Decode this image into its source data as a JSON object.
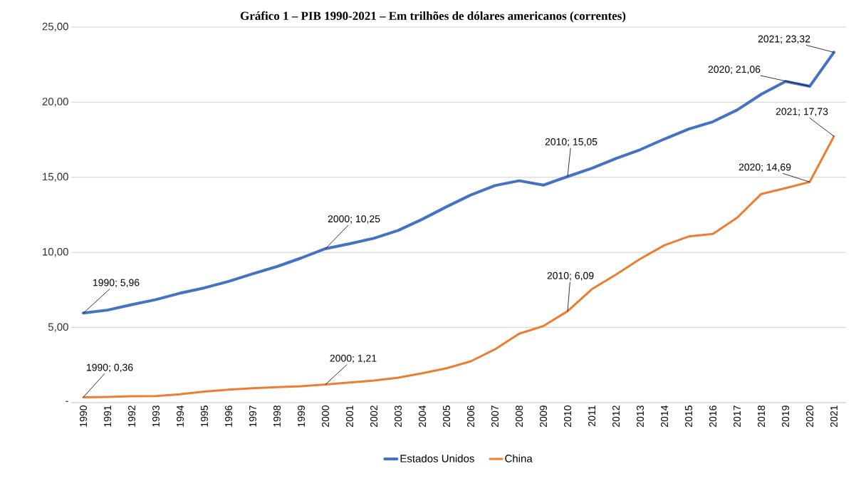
{
  "chart_data": {
    "type": "line",
    "title": "Gráfico 1 – PIB 1990-2021 – Em trilhões de dólares americanos (correntes)",
    "categories": [
      "1990",
      "1991",
      "1992",
      "1993",
      "1994",
      "1995",
      "1996",
      "1997",
      "1998",
      "1999",
      "2000",
      "2001",
      "2002",
      "2003",
      "2004",
      "2005",
      "2006",
      "2007",
      "2008",
      "2009",
      "2010",
      "2011",
      "2012",
      "2013",
      "2014",
      "2015",
      "2016",
      "2017",
      "2018",
      "2019",
      "2020",
      "2021"
    ],
    "series": [
      {
        "name": "Estados Unidos",
        "color": "#4472c4",
        "values": [
          5.96,
          6.16,
          6.52,
          6.86,
          7.29,
          7.64,
          8.07,
          8.58,
          9.06,
          9.63,
          10.25,
          10.58,
          10.94,
          11.46,
          12.21,
          13.04,
          13.82,
          14.45,
          14.77,
          14.48,
          15.05,
          15.6,
          16.25,
          16.84,
          17.55,
          18.21,
          18.7,
          19.48,
          20.53,
          21.38,
          21.06,
          23.32
        ]
      },
      {
        "name": "China",
        "color": "#ed7d31",
        "values": [
          0.36,
          0.38,
          0.43,
          0.44,
          0.56,
          0.73,
          0.86,
          0.96,
          1.03,
          1.09,
          1.21,
          1.34,
          1.47,
          1.66,
          1.96,
          2.29,
          2.75,
          3.55,
          4.59,
          5.1,
          6.09,
          7.55,
          8.53,
          9.57,
          10.48,
          11.06,
          11.23,
          12.31,
          13.89,
          14.28,
          14.69,
          17.73
        ]
      }
    ],
    "ylim": [
      0,
      25
    ],
    "yticks": [
      {
        "value": 0,
        "label": "-"
      },
      {
        "value": 5,
        "label": "5,00"
      },
      {
        "value": 10,
        "label": "10,00"
      },
      {
        "value": 15,
        "label": "15,00"
      },
      {
        "value": 20,
        "label": "20,00"
      },
      {
        "value": 25,
        "label": "25,00"
      }
    ],
    "grid": "y",
    "legend": "bottom",
    "marker": "none",
    "line_style": "solid",
    "annotations": [
      {
        "text": "1990;  5,96",
        "x": "1990",
        "y": 5.96
      },
      {
        "text": "2000;  10,25",
        "x": "2000",
        "y": 10.25
      },
      {
        "text": "2010;  15,05",
        "x": "2010",
        "y": 15.05
      },
      {
        "text": "2020;  21,06",
        "x": "2020",
        "y": 21.06
      },
      {
        "text": "2021;  23,32",
        "x": "2021",
        "y": 23.32
      },
      {
        "text": "1990;  0,36",
        "x": "1990",
        "y": 0.36
      },
      {
        "text": "2000;  1,21",
        "x": "2000",
        "y": 1.21
      },
      {
        "text": "2010;  6,09",
        "x": "2010",
        "y": 6.09
      },
      {
        "text": "2020;  14,69",
        "x": "2020",
        "y": 14.69
      },
      {
        "text": "2021;  17,73",
        "x": "2021",
        "y": 17.73
      }
    ]
  }
}
